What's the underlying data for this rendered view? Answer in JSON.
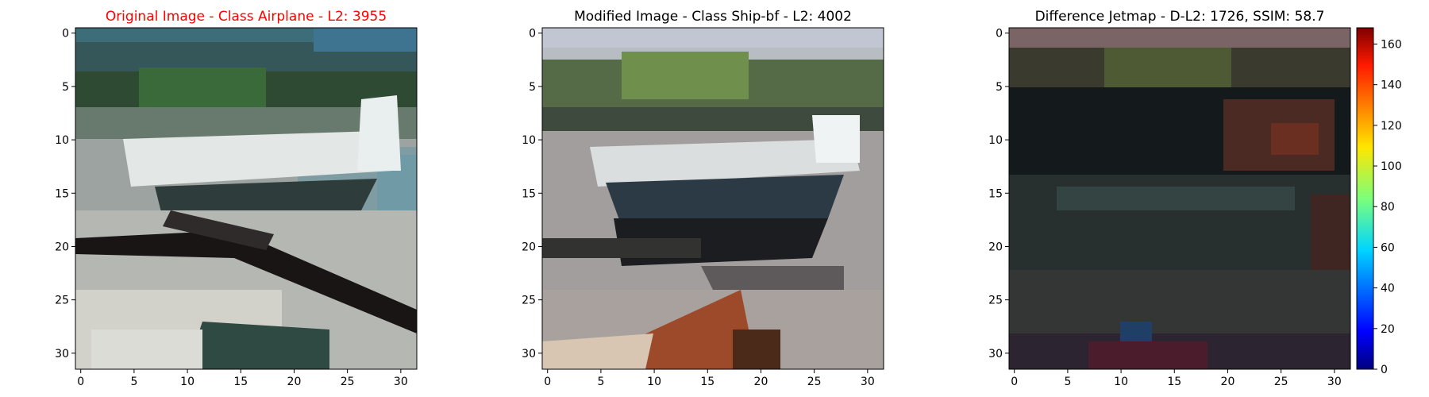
{
  "panels": [
    {
      "title": "Original Image - Class Airplane - L2: 3955",
      "title_color": "#ff0000",
      "content": "original-image",
      "xticks": [
        "0",
        "5",
        "10",
        "15",
        "20",
        "25",
        "30"
      ],
      "yticks": [
        "0",
        "5",
        "10",
        "15",
        "20",
        "25",
        "30"
      ]
    },
    {
      "title": "Modified Image - Class Ship-bf - L2: 4002",
      "title_color": "#000000",
      "content": "modified-image",
      "xticks": [
        "0",
        "5",
        "10",
        "15",
        "20",
        "25",
        "30"
      ],
      "yticks": [
        "0",
        "5",
        "10",
        "15",
        "20",
        "25",
        "30"
      ]
    },
    {
      "title": "Difference Jetmap - D-L2: 1726, SSIM: 58.7",
      "title_color": "#000000",
      "content": "difference-jetmap",
      "xticks": [
        "0",
        "5",
        "10",
        "15",
        "20",
        "25",
        "30"
      ],
      "yticks": [
        "0",
        "5",
        "10",
        "15",
        "20",
        "25",
        "30"
      ]
    }
  ],
  "colorbar": {
    "colormap": "jet",
    "range": [
      0,
      168
    ],
    "ticks": [
      "0",
      "20",
      "40",
      "60",
      "80",
      "100",
      "120",
      "140",
      "160"
    ]
  }
}
